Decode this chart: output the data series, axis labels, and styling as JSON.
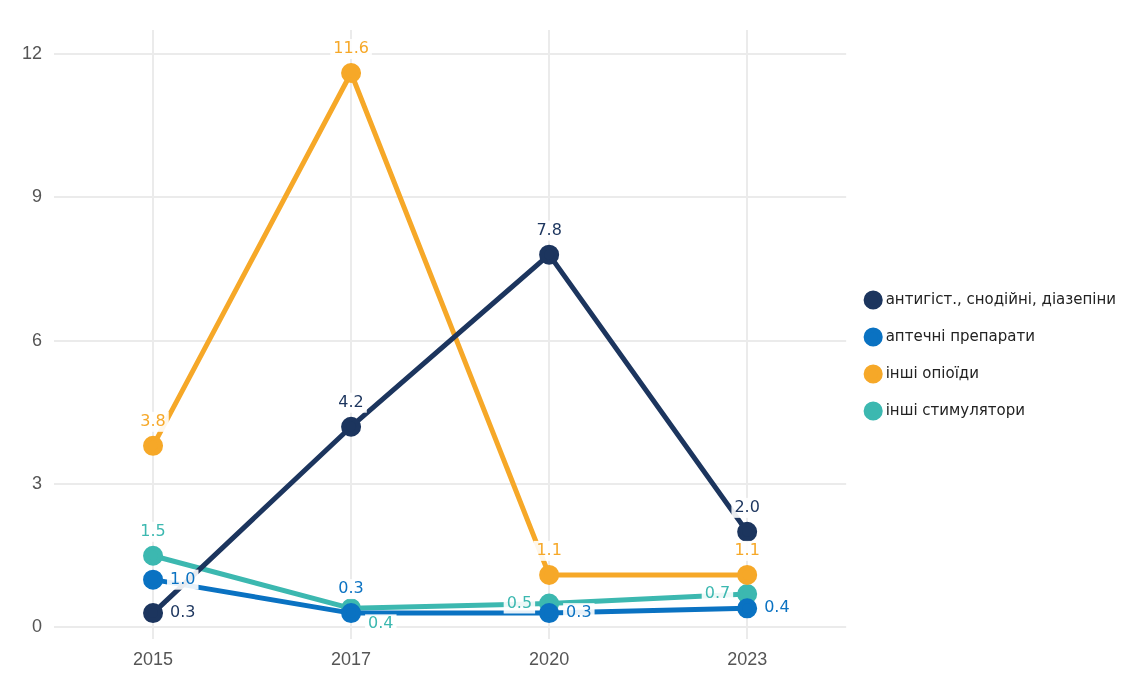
{
  "chart_data": {
    "type": "line",
    "categories": [
      "2015",
      "2017",
      "2020",
      "2023"
    ],
    "series": [
      {
        "name": "антигіст., снодійні, діазепіни",
        "color": "#1c355e",
        "values": [
          0.3,
          4.2,
          7.8,
          2.0
        ],
        "value_labels": [
          "0.3",
          "4.2",
          "7.8",
          "2.0"
        ]
      },
      {
        "name": "аптечні препарати",
        "color": "#0a72c2",
        "values": [
          1.0,
          0.3,
          0.3,
          0.4
        ],
        "value_labels": [
          "1.0",
          "0.3",
          "0.3",
          "0.4"
        ]
      },
      {
        "name": "інші опіоїди",
        "color": "#f6a828",
        "values": [
          3.8,
          11.6,
          1.1,
          1.1
        ],
        "value_labels": [
          "3.8",
          "11.6",
          "1.1",
          "1.1"
        ]
      },
      {
        "name": "інші стимулятори",
        "color": "#3cb8b0",
        "values": [
          1.5,
          0.4,
          0.5,
          0.7
        ],
        "value_labels": [
          "1.5",
          "0.4",
          "0.5",
          "0.7"
        ]
      }
    ],
    "ylim": [
      -0.25,
      12.5
    ],
    "yticks": [
      0,
      3,
      6,
      9,
      12
    ],
    "grid": true,
    "legend": "right",
    "marker": "circle",
    "line_style": "solid"
  }
}
